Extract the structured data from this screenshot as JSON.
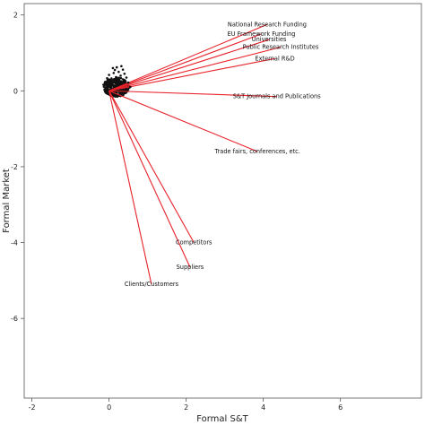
{
  "chart_data": {
    "type": "scatter",
    "xlabel": "Formal S&T",
    "ylabel": "Formal Market",
    "xlim": [
      -2.2,
      8.1
    ],
    "ylim": [
      -8.1,
      2.3
    ],
    "xticks": [
      -2,
      0,
      2,
      4,
      6
    ],
    "yticks": [
      -6,
      -4,
      -2,
      0,
      2
    ],
    "grid": false,
    "point_color": "#111111",
    "vector_color": "#e8222b",
    "vectors": [
      {
        "label": "National Research Funding",
        "x": 4.1,
        "y": 1.75
      },
      {
        "label": "EU Framework Funding",
        "x": 3.95,
        "y": 1.5
      },
      {
        "label": "Universities",
        "x": 4.15,
        "y": 1.35
      },
      {
        "label": "Public Research Institutes",
        "x": 4.45,
        "y": 1.15
      },
      {
        "label": "External R&D",
        "x": 4.3,
        "y": 0.85
      },
      {
        "label": "S&T Journals and Publications",
        "x": 4.35,
        "y": -0.15
      },
      {
        "label": "Trade fairs, conferences, etc.",
        "x": 3.85,
        "y": -1.6
      },
      {
        "label": "Competitors",
        "x": 2.2,
        "y": -4.0
      },
      {
        "label": "Suppliers",
        "x": 2.1,
        "y": -4.65
      },
      {
        "label": "Clients/Customers",
        "x": 1.1,
        "y": -5.1
      }
    ],
    "points": [
      [
        0.1,
        0.6
      ],
      [
        0.2,
        0.62
      ],
      [
        0.32,
        0.65
      ],
      [
        0.25,
        0.5
      ],
      [
        0.36,
        0.56
      ],
      [
        0.0,
        0.42
      ],
      [
        0.12,
        0.47
      ],
      [
        -0.05,
        0.33
      ],
      [
        0.45,
        0.35
      ],
      [
        0.5,
        0.22
      ],
      [
        0.3,
        0.4
      ],
      [
        0.18,
        0.36
      ],
      [
        0.4,
        0.45
      ],
      [
        0.55,
        0.1
      ],
      [
        0.15,
        0.55
      ]
    ]
  }
}
